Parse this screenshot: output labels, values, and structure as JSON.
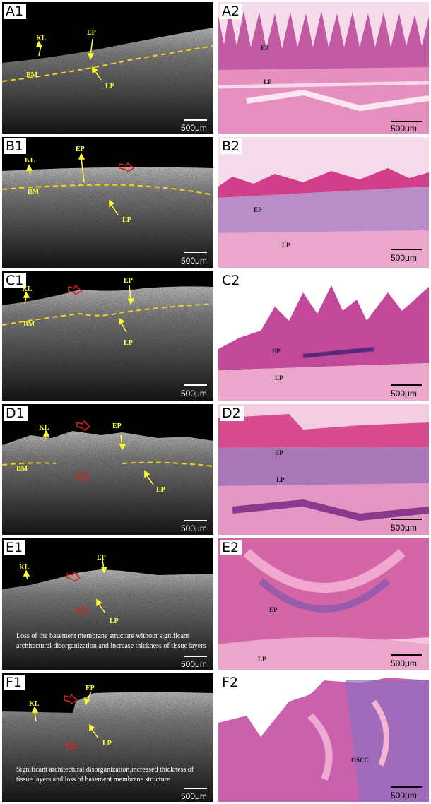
{
  "panels": {
    "A1": {
      "label": "A1",
      "scale": "500μm",
      "KL": "KL",
      "EP": "EP",
      "BM": "BM",
      "LP": "LP"
    },
    "A2": {
      "label": "A2",
      "scale": "500μm",
      "EP": "EP",
      "LP": "LP"
    },
    "B1": {
      "label": "B1",
      "scale": "500μm",
      "KL": "KL",
      "EP": "EP",
      "BM": "BM",
      "LP": "LP"
    },
    "B2": {
      "label": "B2",
      "scale": "500μm",
      "EP": "EP",
      "LP": "LP"
    },
    "C1": {
      "label": "C1",
      "scale": "500μm",
      "KL": "KL",
      "EP": "EP",
      "BM": "BM",
      "LP": "LP"
    },
    "C2": {
      "label": "C2",
      "scale": "500μm",
      "EP": "EP",
      "LP": "LP"
    },
    "D1": {
      "label": "D1",
      "scale": "500μm",
      "KL": "KL",
      "EP": "EP",
      "BM": "BM",
      "LP": "LP"
    },
    "D2": {
      "label": "D2",
      "scale": "500μm",
      "EP": "EP",
      "LP": "LP"
    },
    "E1": {
      "label": "E1",
      "scale": "500μm",
      "KL": "KL",
      "EP": "EP",
      "LP": "LP",
      "caption": "Loss of the basement membrane structure without significant architectural disorganization and increase thickness of tissue layers"
    },
    "E2": {
      "label": "E2",
      "scale": "500μm",
      "EP": "EP",
      "LP": "LP"
    },
    "F1": {
      "label": "F1",
      "scale": "500μm",
      "KL": "KL",
      "EP": "EP",
      "LP": "LP",
      "caption": "Significant architectural disorganization,increased thickness of tissue layers and loss of basement membrane structure"
    },
    "F2": {
      "label": "F2",
      "scale": "500μm",
      "OSCC": "OSCC"
    }
  },
  "colors": {
    "annotation_arrow": "#ffff33",
    "lesion_arrow": "#e02020",
    "bm_line": "#f2d31a",
    "he_stain": "#d9569b"
  }
}
